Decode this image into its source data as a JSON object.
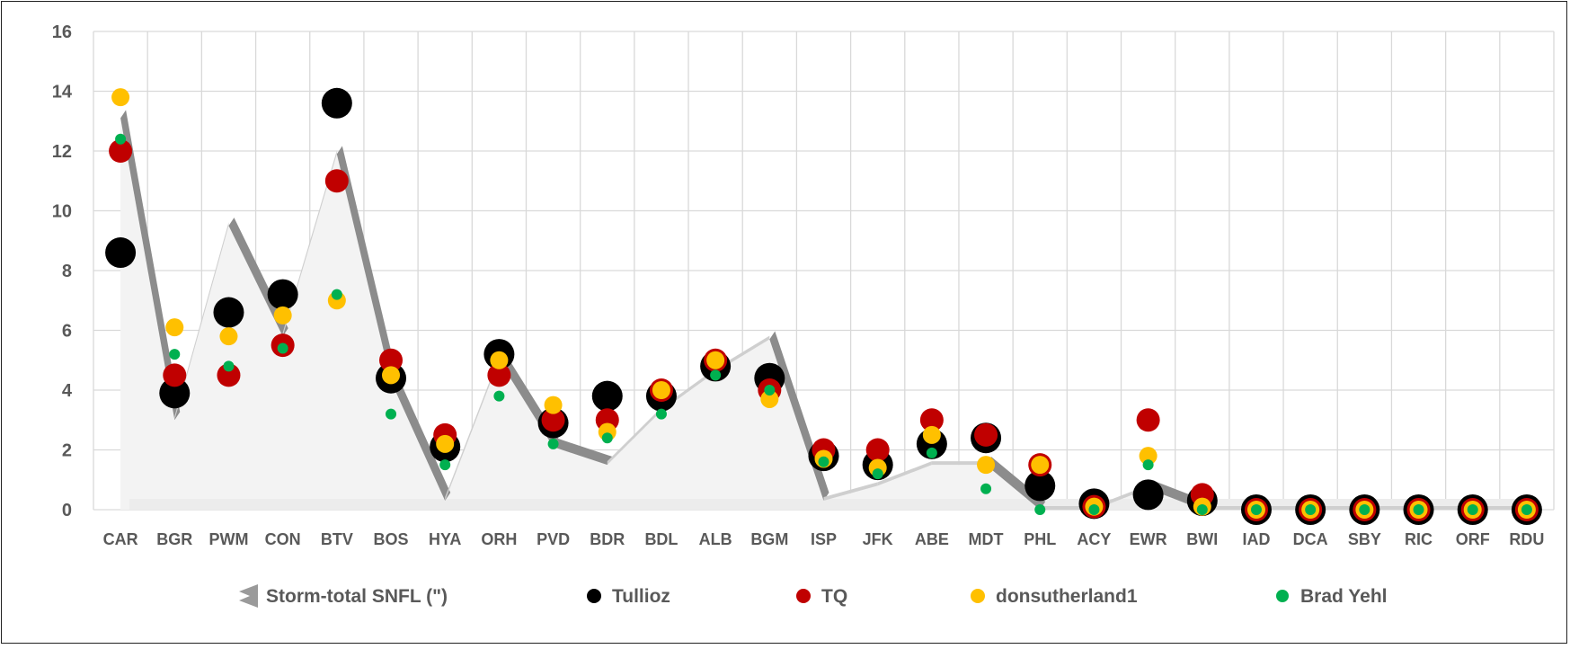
{
  "chart_data": {
    "type": "scatter",
    "title": "",
    "xlabel": "",
    "ylabel": "",
    "ylim": [
      0,
      16
    ],
    "yticks": [
      0,
      2,
      4,
      6,
      8,
      10,
      12,
      14,
      16
    ],
    "grid": true,
    "legend_position": "bottom",
    "categories": [
      "CAR",
      "BGR",
      "PWM",
      "CON",
      "BTV",
      "BOS",
      "HYA",
      "ORH",
      "PVD",
      "BDR",
      "BDL",
      "ALB",
      "BGM",
      "ISP",
      "JFK",
      "ABE",
      "MDT",
      "PHL",
      "ACY",
      "EWR",
      "BWI",
      "IAD",
      "DCA",
      "SBY",
      "RIC",
      "ORF",
      "RDU"
    ],
    "series": [
      {
        "name": "Storm-total SNFL (\")",
        "kind": "area",
        "color": "#9a9a9a",
        "values": [
          13.1,
          3.0,
          9.5,
          5.8,
          11.9,
          4.3,
          0.3,
          5.0,
          2.1,
          1.5,
          3.3,
          4.6,
          5.7,
          0.3,
          0.8,
          1.5,
          1.5,
          0.0,
          0.0,
          0.7,
          0.0,
          0.0,
          0.0,
          0.0,
          0.0,
          0.0,
          0.0
        ]
      },
      {
        "name": "Tullioz",
        "kind": "marker",
        "color": "#000000",
        "radius": 17,
        "values": [
          8.6,
          3.9,
          6.6,
          7.2,
          13.6,
          4.4,
          2.1,
          5.2,
          2.9,
          3.8,
          3.8,
          4.8,
          4.4,
          1.8,
          1.5,
          2.2,
          2.4,
          0.8,
          0.2,
          0.5,
          0.3,
          0,
          0,
          0,
          0,
          0,
          0
        ]
      },
      {
        "name": "TQ",
        "kind": "marker",
        "color": "#c00000",
        "radius": 13,
        "values": [
          12.0,
          4.5,
          4.5,
          5.5,
          11.0,
          5.0,
          2.5,
          4.5,
          3.0,
          3.0,
          4.0,
          5.0,
          4.0,
          2.0,
          2.0,
          3.0,
          2.5,
          1.5,
          0.1,
          3.0,
          0.5,
          0,
          0,
          0,
          0,
          0,
          0
        ]
      },
      {
        "name": "donsutherland1",
        "kind": "marker",
        "color": "#ffc000",
        "radius": 10,
        "values": [
          13.8,
          6.1,
          5.8,
          6.5,
          7.0,
          4.5,
          2.2,
          5.0,
          3.5,
          2.6,
          4.0,
          5.0,
          3.7,
          1.7,
          1.4,
          2.5,
          1.5,
          1.5,
          0.1,
          1.8,
          0.1,
          0,
          0,
          0,
          0,
          0,
          0
        ]
      },
      {
        "name": "Brad Yehl",
        "kind": "marker",
        "color": "#00b050",
        "radius": 6,
        "values": [
          12.4,
          5.2,
          4.8,
          5.4,
          7.2,
          3.2,
          1.5,
          3.8,
          2.2,
          2.4,
          3.2,
          4.5,
          4.0,
          1.6,
          1.2,
          1.9,
          0.7,
          0.0,
          0.0,
          1.5,
          0.0,
          0,
          0,
          0,
          0,
          0,
          0
        ]
      }
    ]
  },
  "legend": {
    "items": [
      {
        "label": "Storm-total SNFL (\")",
        "icon": "area-swatch-icon"
      },
      {
        "label": "Tullioz",
        "icon": "black-dot-icon"
      },
      {
        "label": "TQ",
        "icon": "red-dot-icon"
      },
      {
        "label": "donsutherland1",
        "icon": "yellow-dot-icon"
      },
      {
        "label": "Brad Yehl",
        "icon": "green-dot-icon"
      }
    ]
  }
}
